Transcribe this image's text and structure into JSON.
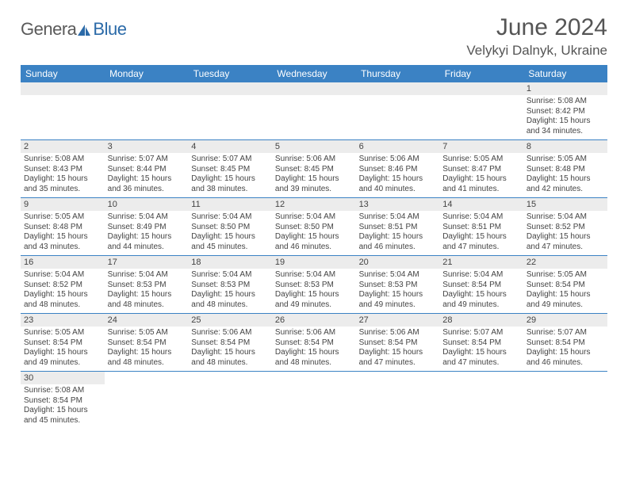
{
  "logo": {
    "text1": "Genera",
    "text2": "Blue"
  },
  "header": {
    "month_title": "June 2024",
    "location": "Velykyi Dalnyk, Ukraine"
  },
  "colors": {
    "header_bg": "#3b82c4",
    "header_text": "#ffffff",
    "daynum_bg": "#ececec",
    "border": "#3b82c4",
    "body_text": "#444444",
    "logo_gray": "#5a5a5a",
    "logo_blue": "#2b6aa8"
  },
  "weekdays": [
    "Sunday",
    "Monday",
    "Tuesday",
    "Wednesday",
    "Thursday",
    "Friday",
    "Saturday"
  ],
  "first_weekday_index": 6,
  "days": [
    {
      "n": 1,
      "sunrise": "5:08 AM",
      "sunset": "8:42 PM",
      "daylight": "15 hours and 34 minutes."
    },
    {
      "n": 2,
      "sunrise": "5:08 AM",
      "sunset": "8:43 PM",
      "daylight": "15 hours and 35 minutes."
    },
    {
      "n": 3,
      "sunrise": "5:07 AM",
      "sunset": "8:44 PM",
      "daylight": "15 hours and 36 minutes."
    },
    {
      "n": 4,
      "sunrise": "5:07 AM",
      "sunset": "8:45 PM",
      "daylight": "15 hours and 38 minutes."
    },
    {
      "n": 5,
      "sunrise": "5:06 AM",
      "sunset": "8:45 PM",
      "daylight": "15 hours and 39 minutes."
    },
    {
      "n": 6,
      "sunrise": "5:06 AM",
      "sunset": "8:46 PM",
      "daylight": "15 hours and 40 minutes."
    },
    {
      "n": 7,
      "sunrise": "5:05 AM",
      "sunset": "8:47 PM",
      "daylight": "15 hours and 41 minutes."
    },
    {
      "n": 8,
      "sunrise": "5:05 AM",
      "sunset": "8:48 PM",
      "daylight": "15 hours and 42 minutes."
    },
    {
      "n": 9,
      "sunrise": "5:05 AM",
      "sunset": "8:48 PM",
      "daylight": "15 hours and 43 minutes."
    },
    {
      "n": 10,
      "sunrise": "5:04 AM",
      "sunset": "8:49 PM",
      "daylight": "15 hours and 44 minutes."
    },
    {
      "n": 11,
      "sunrise": "5:04 AM",
      "sunset": "8:50 PM",
      "daylight": "15 hours and 45 minutes."
    },
    {
      "n": 12,
      "sunrise": "5:04 AM",
      "sunset": "8:50 PM",
      "daylight": "15 hours and 46 minutes."
    },
    {
      "n": 13,
      "sunrise": "5:04 AM",
      "sunset": "8:51 PM",
      "daylight": "15 hours and 46 minutes."
    },
    {
      "n": 14,
      "sunrise": "5:04 AM",
      "sunset": "8:51 PM",
      "daylight": "15 hours and 47 minutes."
    },
    {
      "n": 15,
      "sunrise": "5:04 AM",
      "sunset": "8:52 PM",
      "daylight": "15 hours and 47 minutes."
    },
    {
      "n": 16,
      "sunrise": "5:04 AM",
      "sunset": "8:52 PM",
      "daylight": "15 hours and 48 minutes."
    },
    {
      "n": 17,
      "sunrise": "5:04 AM",
      "sunset": "8:53 PM",
      "daylight": "15 hours and 48 minutes."
    },
    {
      "n": 18,
      "sunrise": "5:04 AM",
      "sunset": "8:53 PM",
      "daylight": "15 hours and 48 minutes."
    },
    {
      "n": 19,
      "sunrise": "5:04 AM",
      "sunset": "8:53 PM",
      "daylight": "15 hours and 49 minutes."
    },
    {
      "n": 20,
      "sunrise": "5:04 AM",
      "sunset": "8:53 PM",
      "daylight": "15 hours and 49 minutes."
    },
    {
      "n": 21,
      "sunrise": "5:04 AM",
      "sunset": "8:54 PM",
      "daylight": "15 hours and 49 minutes."
    },
    {
      "n": 22,
      "sunrise": "5:05 AM",
      "sunset": "8:54 PM",
      "daylight": "15 hours and 49 minutes."
    },
    {
      "n": 23,
      "sunrise": "5:05 AM",
      "sunset": "8:54 PM",
      "daylight": "15 hours and 49 minutes."
    },
    {
      "n": 24,
      "sunrise": "5:05 AM",
      "sunset": "8:54 PM",
      "daylight": "15 hours and 48 minutes."
    },
    {
      "n": 25,
      "sunrise": "5:06 AM",
      "sunset": "8:54 PM",
      "daylight": "15 hours and 48 minutes."
    },
    {
      "n": 26,
      "sunrise": "5:06 AM",
      "sunset": "8:54 PM",
      "daylight": "15 hours and 48 minutes."
    },
    {
      "n": 27,
      "sunrise": "5:06 AM",
      "sunset": "8:54 PM",
      "daylight": "15 hours and 47 minutes."
    },
    {
      "n": 28,
      "sunrise": "5:07 AM",
      "sunset": "8:54 PM",
      "daylight": "15 hours and 47 minutes."
    },
    {
      "n": 29,
      "sunrise": "5:07 AM",
      "sunset": "8:54 PM",
      "daylight": "15 hours and 46 minutes."
    },
    {
      "n": 30,
      "sunrise": "5:08 AM",
      "sunset": "8:54 PM",
      "daylight": "15 hours and 45 minutes."
    }
  ],
  "labels": {
    "sunrise": "Sunrise: ",
    "sunset": "Sunset: ",
    "daylight": "Daylight: "
  }
}
